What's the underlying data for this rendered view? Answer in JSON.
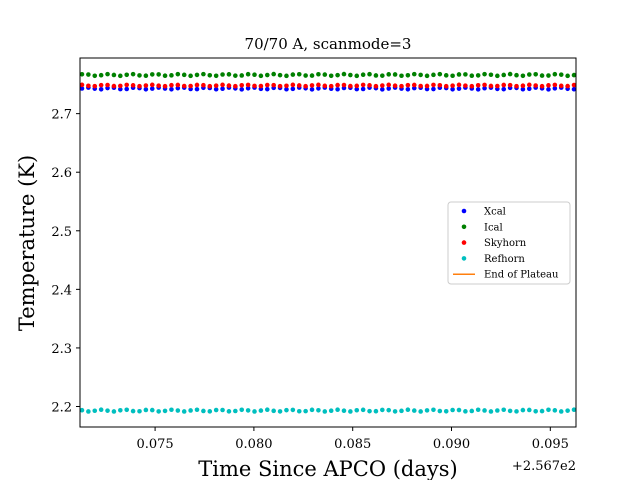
{
  "chart_data": {
    "type": "scatter",
    "title": "70/70 A, scanmode=3",
    "xlabel": "Time Since APCO (days)",
    "ylabel": "Temperature (K)",
    "x_offset_label": "+2.567e2",
    "xlim": [
      0.0712,
      0.0963
    ],
    "ylim": [
      2.165,
      2.795
    ],
    "x_ticks": [
      0.075,
      0.08,
      0.085,
      0.09,
      0.095
    ],
    "x_tick_labels": [
      "0.075",
      "0.080",
      "0.085",
      "0.090",
      "0.095"
    ],
    "y_ticks": [
      2.2,
      2.3,
      2.4,
      2.5,
      2.6,
      2.7
    ],
    "y_tick_labels": [
      "2.2",
      "2.3",
      "2.4",
      "2.5",
      "2.6",
      "2.7"
    ],
    "x_start": 0.0713,
    "x_end": 0.0962,
    "num_points": 78,
    "legend_position": "center-right",
    "series": [
      {
        "name": "Xcal",
        "color": "#0000ff",
        "marker": "dot",
        "level": 2.743,
        "jitter": 0.0015
      },
      {
        "name": "Ical",
        "color": "#008000",
        "marker": "dot",
        "level": 2.766,
        "jitter": 0.0015
      },
      {
        "name": "Skyhorn",
        "color": "#ff0000",
        "marker": "dot",
        "level": 2.748,
        "jitter": 0.0012
      },
      {
        "name": "Refhorn",
        "color": "#00bfbf",
        "marker": "dot",
        "level": 2.193,
        "jitter": 0.0015
      },
      {
        "name": "End of Plateau",
        "color": "#ff7f0e",
        "marker": "line"
      }
    ]
  }
}
